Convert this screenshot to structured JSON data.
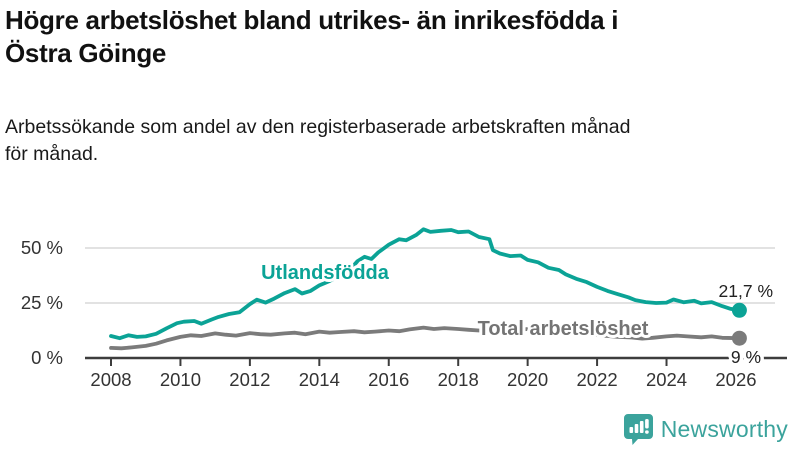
{
  "header": {
    "title_lines": [
      "Högre arbetslöshet bland utrikes- än inrikesfödda i",
      "Östra Göinge"
    ],
    "subtitle_lines": [
      "Arbetssökande som andel av den registerbaserade arbetskraften månad",
      "för månad."
    ]
  },
  "chart_data": {
    "type": "line",
    "title": "Högre arbetslöshet bland utrikes- än inrikesfödda i Östra Göinge",
    "subtitle": "Arbetssökande som andel av den registerbaserade arbetskraften månad för månad.",
    "x_axis": {
      "ticks": [
        2008,
        2010,
        2012,
        2014,
        2016,
        2018,
        2020,
        2022,
        2024,
        2026
      ],
      "range": [
        2007.25,
        2027.4
      ]
    },
    "y_axis": {
      "tick_labels": [
        "0 %",
        "25 %",
        "50 %"
      ],
      "tick_values": [
        0,
        25,
        50
      ],
      "range": [
        0,
        62
      ],
      "grid": true
    },
    "colors": {
      "axis": "#3d3d3d",
      "grid": "#d9d9d9",
      "tick_text": "#333333"
    },
    "series": [
      {
        "name": "Utlandsfödda",
        "color": "#0ba396",
        "end_label": "21,7 %",
        "end_value": 21.7,
        "points": [
          [
            2008.0,
            10
          ],
          [
            2008.25,
            9
          ],
          [
            2008.5,
            10.3
          ],
          [
            2008.75,
            9.6
          ],
          [
            2009.0,
            9.8
          ],
          [
            2009.3,
            11
          ],
          [
            2009.6,
            13.5
          ],
          [
            2009.9,
            15.8
          ],
          [
            2010.1,
            16.5
          ],
          [
            2010.4,
            16.8
          ],
          [
            2010.6,
            15.6
          ],
          [
            2010.9,
            17.5
          ],
          [
            2011.1,
            18.7
          ],
          [
            2011.4,
            20
          ],
          [
            2011.7,
            20.8
          ],
          [
            2012.0,
            24.5
          ],
          [
            2012.2,
            26.5
          ],
          [
            2012.45,
            25.2
          ],
          [
            2012.7,
            27
          ],
          [
            2013.0,
            29.5
          ],
          [
            2013.3,
            31.3
          ],
          [
            2013.5,
            29.3
          ],
          [
            2013.75,
            30.5
          ],
          [
            2014.0,
            33
          ],
          [
            2014.3,
            35
          ],
          [
            2014.6,
            37.5
          ],
          [
            2014.9,
            40.5
          ],
          [
            2015.1,
            44
          ],
          [
            2015.3,
            46
          ],
          [
            2015.5,
            45
          ],
          [
            2015.7,
            48
          ],
          [
            2016.0,
            51.5
          ],
          [
            2016.3,
            54
          ],
          [
            2016.5,
            53.5
          ],
          [
            2016.8,
            56
          ],
          [
            2017.0,
            58.5
          ],
          [
            2017.2,
            57.3
          ],
          [
            2017.5,
            57.8
          ],
          [
            2017.8,
            58.2
          ],
          [
            2018.0,
            57.2
          ],
          [
            2018.3,
            57.5
          ],
          [
            2018.6,
            55
          ],
          [
            2018.9,
            54
          ],
          [
            2019.0,
            49
          ],
          [
            2019.2,
            47.5
          ],
          [
            2019.5,
            46.3
          ],
          [
            2019.8,
            46.6
          ],
          [
            2020.0,
            44.6
          ],
          [
            2020.3,
            43.5
          ],
          [
            2020.6,
            41
          ],
          [
            2020.9,
            40
          ],
          [
            2021.1,
            38
          ],
          [
            2021.4,
            36
          ],
          [
            2021.7,
            34.5
          ],
          [
            2022.0,
            32.3
          ],
          [
            2022.3,
            30.5
          ],
          [
            2022.6,
            29
          ],
          [
            2022.9,
            27.6
          ],
          [
            2023.1,
            26.3
          ],
          [
            2023.4,
            25.4
          ],
          [
            2023.7,
            25
          ],
          [
            2024.0,
            25.2
          ],
          [
            2024.2,
            26.6
          ],
          [
            2024.5,
            25.3
          ],
          [
            2024.8,
            26
          ],
          [
            2025.0,
            24.8
          ],
          [
            2025.3,
            25.4
          ],
          [
            2025.6,
            23.6
          ],
          [
            2025.85,
            22.3
          ],
          [
            2026.1,
            21.7
          ]
        ]
      },
      {
        "name": "Total arbetslöshet",
        "color": "#7b7b7b",
        "end_label": "9 %",
        "end_value": 9,
        "points": [
          [
            2008.0,
            4.6
          ],
          [
            2008.3,
            4.4
          ],
          [
            2008.6,
            4.8
          ],
          [
            2009.0,
            5.5
          ],
          [
            2009.3,
            6.5
          ],
          [
            2009.6,
            8
          ],
          [
            2010.0,
            9.6
          ],
          [
            2010.3,
            10.3
          ],
          [
            2010.6,
            10
          ],
          [
            2011.0,
            11.2
          ],
          [
            2011.3,
            10.6
          ],
          [
            2011.6,
            10.2
          ],
          [
            2012.0,
            11.3
          ],
          [
            2012.3,
            10.8
          ],
          [
            2012.6,
            10.6
          ],
          [
            2013.0,
            11.2
          ],
          [
            2013.3,
            11.5
          ],
          [
            2013.6,
            10.8
          ],
          [
            2014.0,
            12
          ],
          [
            2014.3,
            11.5
          ],
          [
            2014.6,
            11.8
          ],
          [
            2015.0,
            12.2
          ],
          [
            2015.3,
            11.7
          ],
          [
            2015.6,
            12
          ],
          [
            2016.0,
            12.5
          ],
          [
            2016.3,
            12.2
          ],
          [
            2016.6,
            13
          ],
          [
            2017.0,
            13.8
          ],
          [
            2017.3,
            13.2
          ],
          [
            2017.6,
            13.6
          ],
          [
            2018.0,
            13.2
          ],
          [
            2018.3,
            12.8
          ],
          [
            2018.6,
            12.5
          ],
          [
            2019.0,
            12.8
          ],
          [
            2019.3,
            13
          ],
          [
            2019.6,
            12.6
          ],
          [
            2020.0,
            13.2
          ],
          [
            2020.3,
            13
          ],
          [
            2020.6,
            12.4
          ],
          [
            2021.0,
            12
          ],
          [
            2021.3,
            11.4
          ],
          [
            2021.6,
            10.8
          ],
          [
            2022.0,
            10.4
          ],
          [
            2022.3,
            10
          ],
          [
            2022.6,
            9.6
          ],
          [
            2023.0,
            9.3
          ],
          [
            2023.3,
            8.8
          ],
          [
            2023.6,
            9.2
          ],
          [
            2024.0,
            9.8
          ],
          [
            2024.3,
            10.2
          ],
          [
            2024.6,
            9.8
          ],
          [
            2025.0,
            9.4
          ],
          [
            2025.3,
            9.8
          ],
          [
            2025.6,
            9.2
          ],
          [
            2026.1,
            9
          ]
        ]
      }
    ],
    "legend_position": "inline-labels"
  },
  "footer": {
    "brand": "Newsworthy",
    "brand_color": "#3ba39c",
    "logo_icon": "bar-chart-speech-bubble-icon"
  }
}
